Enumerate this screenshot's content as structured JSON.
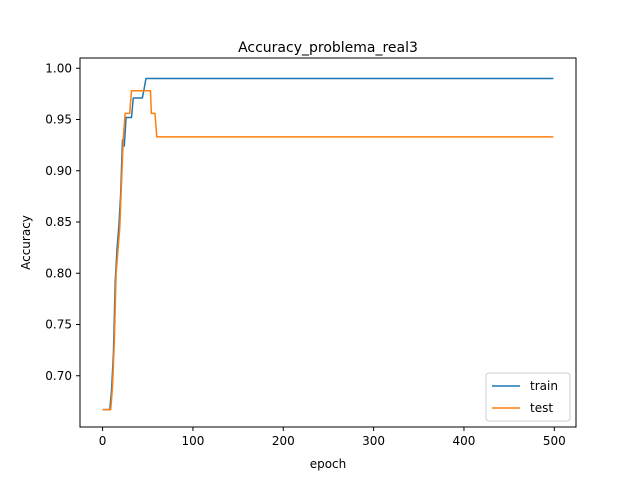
{
  "chart_data": {
    "type": "line",
    "title": "Accuracy_problema_real3",
    "xlabel": "epoch",
    "ylabel": "Accuracy",
    "xlim": [
      -25,
      524
    ],
    "ylim": [
      0.65,
      1.01
    ],
    "xticks": [
      0,
      100,
      200,
      300,
      400,
      500
    ],
    "yticks": [
      0.7,
      0.75,
      0.8,
      0.85,
      0.9,
      0.95,
      1.0
    ],
    "grid": false,
    "legend_position": "lower-right",
    "series": [
      {
        "name": "train",
        "color": "#1f77b4",
        "points": [
          [
            0,
            0.667
          ],
          [
            8,
            0.667
          ],
          [
            10,
            0.687
          ],
          [
            12,
            0.722
          ],
          [
            14,
            0.792
          ],
          [
            16,
            0.824
          ],
          [
            18,
            0.846
          ],
          [
            20,
            0.877
          ],
          [
            22,
            0.93
          ],
          [
            24,
            0.924
          ],
          [
            26,
            0.952
          ],
          [
            32,
            0.952
          ],
          [
            34,
            0.971
          ],
          [
            40,
            0.971
          ],
          [
            44,
            0.971
          ],
          [
            46,
            0.98
          ],
          [
            48,
            0.99
          ],
          [
            100,
            0.99
          ],
          [
            200,
            0.99
          ],
          [
            300,
            0.99
          ],
          [
            400,
            0.99
          ],
          [
            499,
            0.99
          ]
        ]
      },
      {
        "name": "test",
        "color": "#ff7f0e",
        "points": [
          [
            0,
            0.667
          ],
          [
            9,
            0.667
          ],
          [
            11,
            0.689
          ],
          [
            13,
            0.733
          ],
          [
            15,
            0.8
          ],
          [
            17,
            0.822
          ],
          [
            19,
            0.844
          ],
          [
            21,
            0.889
          ],
          [
            23,
            0.933
          ],
          [
            25,
            0.956
          ],
          [
            30,
            0.956
          ],
          [
            32,
            0.978
          ],
          [
            50,
            0.978
          ],
          [
            53,
            0.978
          ],
          [
            54,
            0.956
          ],
          [
            58,
            0.956
          ],
          [
            60,
            0.933
          ],
          [
            100,
            0.933
          ],
          [
            200,
            0.933
          ],
          [
            300,
            0.933
          ],
          [
            400,
            0.933
          ],
          [
            499,
            0.933
          ]
        ]
      }
    ]
  }
}
